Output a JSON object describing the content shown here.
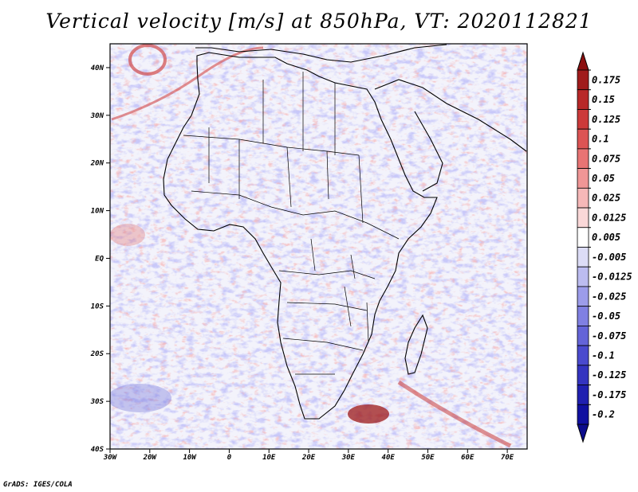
{
  "title": "Vertical velocity [m/s] at 850hPa, VT: 2020112821",
  "credit": "GrADS: IGES/COLA",
  "map": {
    "type": "filled-field",
    "variable": "Vertical velocity",
    "units": "m/s",
    "level": "850hPa",
    "valid_time": "2020112821",
    "lon_range": [
      -30,
      75
    ],
    "lat_range": [
      -40,
      45
    ],
    "lat_ticks": [
      {
        "value": 40,
        "label": "40N"
      },
      {
        "value": 30,
        "label": "30N"
      },
      {
        "value": 20,
        "label": "20N"
      },
      {
        "value": 10,
        "label": "10N"
      },
      {
        "value": 0,
        "label": "EQ"
      },
      {
        "value": -10,
        "label": "10S"
      },
      {
        "value": -20,
        "label": "20S"
      },
      {
        "value": -30,
        "label": "30S"
      },
      {
        "value": -40,
        "label": "40S"
      }
    ],
    "lon_ticks": [
      {
        "value": -30,
        "label": "30W"
      },
      {
        "value": -20,
        "label": "20W"
      },
      {
        "value": -10,
        "label": "10W"
      },
      {
        "value": 0,
        "label": "0"
      },
      {
        "value": 10,
        "label": "10E"
      },
      {
        "value": 20,
        "label": "20E"
      },
      {
        "value": 30,
        "label": "30E"
      },
      {
        "value": 40,
        "label": "40E"
      },
      {
        "value": 50,
        "label": "50E"
      },
      {
        "value": 60,
        "label": "60E"
      },
      {
        "value": 70,
        "label": "70E"
      }
    ]
  },
  "colorbar": {
    "levels": [
      {
        "label": "0.175",
        "color": "#a01c1c"
      },
      {
        "label": "0.15",
        "color": "#b82828"
      },
      {
        "label": "0.125",
        "color": "#cc3a3a"
      },
      {
        "label": "0.1",
        "color": "#dc5454"
      },
      {
        "label": "0.075",
        "color": "#e87474"
      },
      {
        "label": "0.05",
        "color": "#f09696"
      },
      {
        "label": "0.025",
        "color": "#f6b8b8"
      },
      {
        "label": "0.0125",
        "color": "#fad8d8"
      },
      {
        "label": "0.005",
        "color": "#ffffff"
      },
      {
        "label": "-0.005",
        "color": "#dcdcf6"
      },
      {
        "label": "-0.0125",
        "color": "#bcbcf0"
      },
      {
        "label": "-0.025",
        "color": "#9c9cea"
      },
      {
        "label": "-0.05",
        "color": "#8080e2"
      },
      {
        "label": "-0.075",
        "color": "#6464d8"
      },
      {
        "label": "-0.1",
        "color": "#4a4ace"
      },
      {
        "label": "-0.125",
        "color": "#3434c0"
      },
      {
        "label": "-0.175",
        "color": "#2020b0"
      },
      {
        "label": "-0.2",
        "color": "#1010a0"
      }
    ],
    "top_triangle_color": "#8c1010",
    "bottom_triangle_color": "#0c0c8c"
  }
}
